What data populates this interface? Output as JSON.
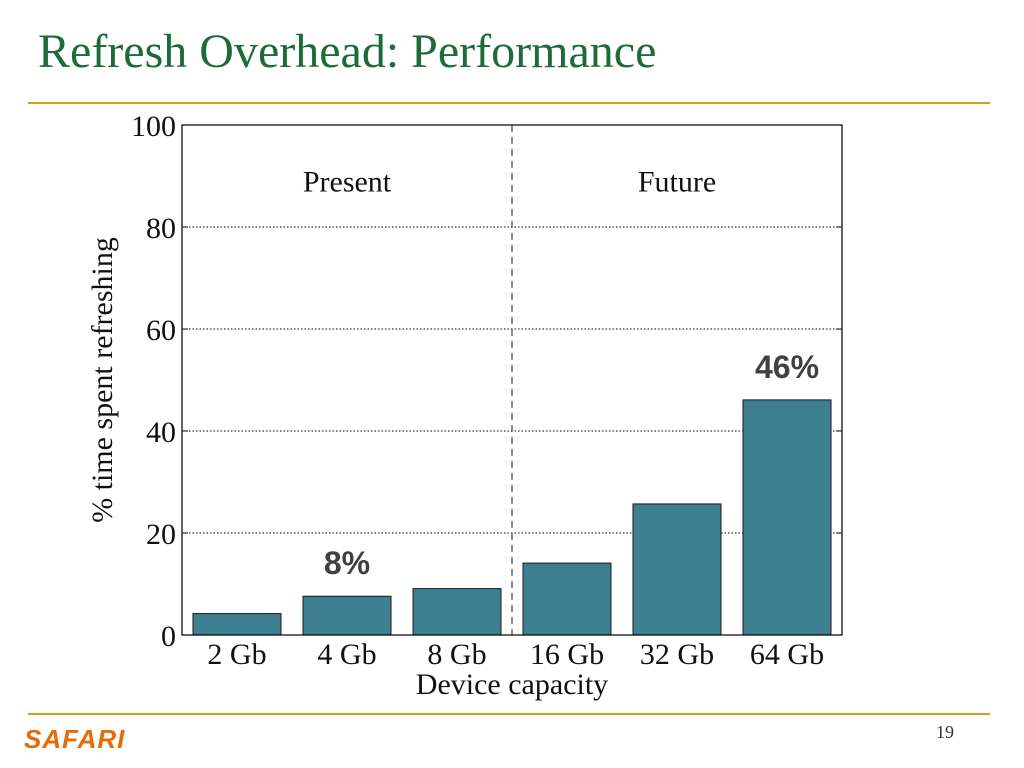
{
  "slide": {
    "title": "Refresh Overhead: Performance",
    "brand": "SAFARI",
    "page_number": "19"
  },
  "colors": {
    "title": "#1e6b3a",
    "rule": "#d4a017",
    "bar": "#3d7f91",
    "brand": "#e46c0a",
    "callout": "#404040"
  },
  "chart_data": {
    "type": "bar",
    "categories": [
      "2 Gb",
      "4 Gb",
      "8 Gb",
      "16 Gb",
      "32 Gb",
      "64 Gb"
    ],
    "values": [
      4.2,
      7.6,
      9.1,
      14.1,
      25.7,
      46.1
    ],
    "xlabel": "Device capacity",
    "ylabel": "% time spent refreshing",
    "ylim": [
      0,
      100
    ],
    "yticks": [
      0,
      20,
      40,
      60,
      80,
      100
    ],
    "grid": "horizontal dotted",
    "regions": [
      {
        "label": "Present",
        "categories": [
          "2 Gb",
          "4 Gb",
          "8 Gb"
        ]
      },
      {
        "label": "Future",
        "categories": [
          "16 Gb",
          "32 Gb",
          "64 Gb"
        ]
      }
    ],
    "divider_after_category": "8 Gb",
    "annotations": [
      {
        "text": "8%",
        "category": "4 Gb",
        "value": 8
      },
      {
        "text": "46%",
        "category": "64 Gb",
        "value": 46
      }
    ]
  }
}
